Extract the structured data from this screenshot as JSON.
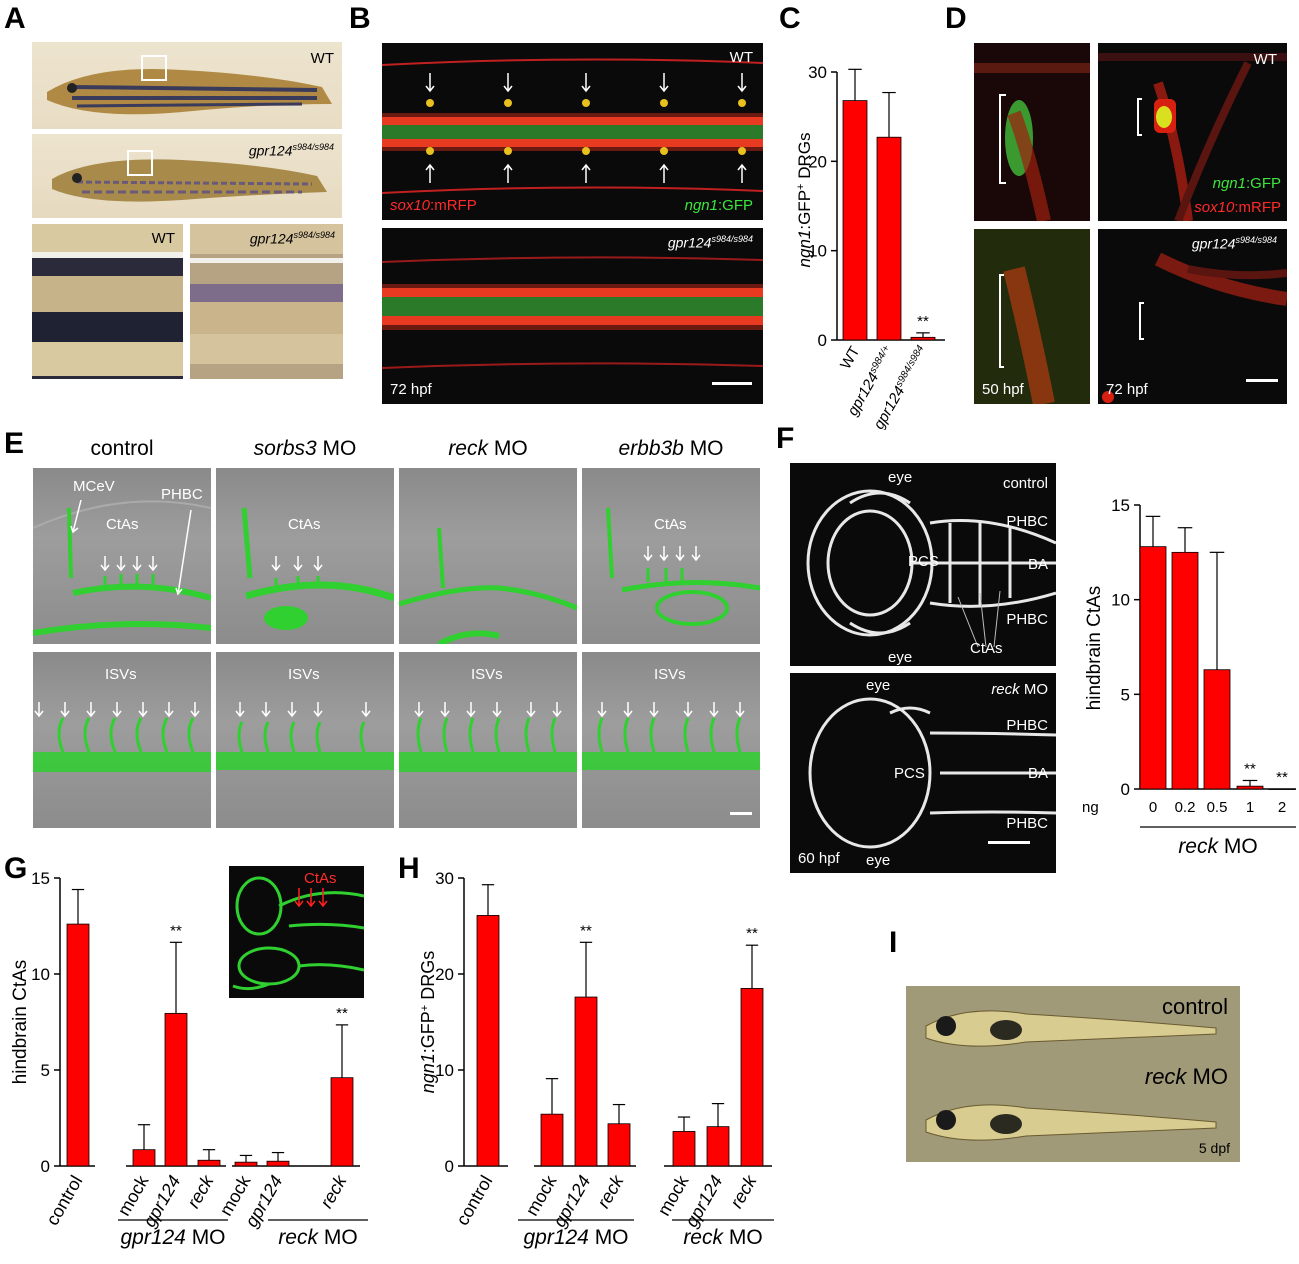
{
  "panels": {
    "A": {
      "letter": "A",
      "wt": "WT",
      "mutant": "gpr124",
      "mutant_sup": "s984/s984",
      "inset_wt": "WT",
      "inset_mut": "gpr124",
      "inset_mut_sup": "s984/s984"
    },
    "B": {
      "letter": "B",
      "wt": "WT",
      "sox10": "sox10",
      "sox10_suffix": ":mRFP",
      "ngn1": "ngn1",
      "ngn1_suffix": ":GFP",
      "mutant": "gpr124",
      "mutant_sup": "s984/s984",
      "stage": "72 hpf"
    },
    "C": {
      "letter": "C"
    },
    "D": {
      "letter": "D",
      "wt": "WT",
      "ngn1": "ngn1",
      "ngn1_suffix": ":GFP",
      "sox10": "sox10",
      "sox10_suffix": ":mRFP",
      "mutant": "gpr124",
      "mutant_sup": "s984/s984",
      "stage1": "50 hpf",
      "stage2": "72 hpf"
    },
    "E": {
      "letter": "E",
      "col1": "control",
      "col2_gene": "sorbs3",
      "col2_suffix": " MO",
      "col3_gene": "reck",
      "col3_suffix": " MO",
      "col4_gene": "erbb3b",
      "col4_suffix": " MO",
      "mcev": "MCeV",
      "phbc": "PHBC",
      "ctas": "CtAs",
      "isvs": "ISVs"
    },
    "F": {
      "letter": "F",
      "eye": "eye",
      "control": "control",
      "phbc": "PHBC",
      "ba": "BA",
      "pcs": "PCS",
      "ctas": "CtAs",
      "reck": "reck",
      "mo": " MO",
      "stage": "60 hpf"
    },
    "G": {
      "letter": "G",
      "inset_ctas": "CtAs"
    },
    "H": {
      "letter": "H"
    },
    "I": {
      "letter": "I",
      "control": "control",
      "reck": "reck",
      "mo": " MO",
      "stage": "5 dpf"
    }
  },
  "chart_data": [
    {
      "panel": "C",
      "type": "bar",
      "ylabel_italic": "ngn1",
      "ylabel_rest": ":GFP",
      "ylabel_sup": "+",
      "ylabel_end": " DRGs",
      "ylim": [
        0,
        30
      ],
      "yticks": [
        0,
        10,
        20,
        30
      ],
      "categories": [
        {
          "label": "WT",
          "italic": "",
          "sup": ""
        },
        {
          "label": "",
          "italic": "gpr124",
          "sup": "s984/+"
        },
        {
          "label": "",
          "italic": "gpr124",
          "sup": "s984/s984"
        }
      ],
      "values": [
        26.8,
        22.7,
        0.3
      ],
      "errors": [
        3.5,
        5.0,
        0.5
      ],
      "sig": [
        "",
        "",
        "**"
      ]
    },
    {
      "panel": "F",
      "type": "bar",
      "ylabel": "hindbrain CtAs",
      "ylim": [
        0,
        15
      ],
      "yticks": [
        0,
        5,
        10,
        15
      ],
      "xprefix": "ng",
      "categories": [
        "0",
        "0.2",
        "0.5",
        "1",
        "2"
      ],
      "values": [
        12.8,
        12.5,
        6.3,
        0.15,
        0
      ],
      "errors": [
        1.6,
        1.3,
        6.2,
        0.3,
        0
      ],
      "sig": [
        "",
        "",
        "",
        "**",
        "**"
      ],
      "group_italic": "reck",
      "group_rest": " MO"
    },
    {
      "panel": "G",
      "type": "bar",
      "ylabel": "hindbrain CtAs",
      "ylim": [
        0,
        15
      ],
      "yticks": [
        0,
        5,
        10,
        15
      ],
      "categories": [
        {
          "label": "control",
          "italic": false
        },
        {
          "label": "mock",
          "italic": false
        },
        {
          "label": "gpr124",
          "italic": true
        },
        {
          "label": "reck",
          "italic": true
        },
        {
          "label": "mock",
          "italic": false
        },
        {
          "label": "gpr124",
          "italic": true
        },
        {
          "label": "reck",
          "italic": true
        }
      ],
      "values": [
        12.6,
        0.85,
        7.95,
        0.3,
        0.2,
        0.25,
        4.6
      ],
      "errors": [
        1.8,
        1.3,
        3.7,
        0.55,
        0.35,
        0.45,
        2.75
      ],
      "sig": [
        "",
        "",
        "**",
        "",
        "",
        "",
        "**"
      ],
      "groups": [
        {
          "italic": "gpr124",
          "rest": " MO"
        },
        {
          "italic": "reck",
          "rest": " MO"
        }
      ]
    },
    {
      "panel": "H",
      "type": "bar",
      "ylabel_italic": "ngn1",
      "ylabel_rest": ":GFP",
      "ylabel_sup": "+",
      "ylabel_end": " DRGs",
      "ylim": [
        0,
        30
      ],
      "yticks": [
        0,
        10,
        20,
        30
      ],
      "categories": [
        {
          "label": "control",
          "italic": false
        },
        {
          "label": "mock",
          "italic": false
        },
        {
          "label": "gpr124",
          "italic": true
        },
        {
          "label": "reck",
          "italic": true
        },
        {
          "label": "mock",
          "italic": false
        },
        {
          "label": "gpr124",
          "italic": true
        },
        {
          "label": "reck",
          "italic": true
        }
      ],
      "values": [
        26.1,
        5.4,
        17.6,
        4.4,
        3.6,
        4.1,
        18.5
      ],
      "errors": [
        3.2,
        3.7,
        5.7,
        2.0,
        1.5,
        2.4,
        4.5
      ],
      "sig": [
        "",
        "",
        "**",
        "",
        "",
        "",
        "**"
      ],
      "groups": [
        {
          "italic": "gpr124",
          "rest": " MO"
        },
        {
          "italic": "reck",
          "rest": " MO"
        }
      ]
    }
  ],
  "colors": {
    "bar": "#ff0000",
    "axis": "#000000",
    "gfp": "#3ce63c",
    "rfp": "#ff2a2a"
  }
}
